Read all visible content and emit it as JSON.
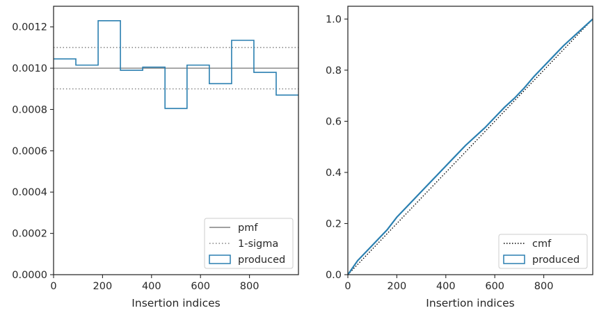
{
  "chart_data": [
    {
      "type": "line",
      "subtype": "step-histogram",
      "xlabel": "Insertion indices",
      "ylabel": "",
      "title": "",
      "xlim": [
        0,
        1000
      ],
      "ylim": [
        0,
        0.0013
      ],
      "xticks": [
        0,
        200,
        400,
        600,
        800
      ],
      "xtick_labels": [
        "0",
        "200",
        "400",
        "600",
        "800"
      ],
      "yticks": [
        0,
        0.0002,
        0.0004,
        0.0006,
        0.0008,
        0.001,
        0.0012
      ],
      "ytick_labels": [
        "0.0000",
        "0.0002",
        "0.0004",
        "0.0006",
        "0.0008",
        "0.0010",
        "0.0012"
      ],
      "legend_position": "lower right",
      "legend": [
        "pmf",
        "1-sigma",
        "produced"
      ],
      "reference_lines": [
        {
          "name": "pmf",
          "style": "solid",
          "color": "#808080",
          "y": 0.001
        },
        {
          "name": "1-sigma",
          "style": "dotted",
          "color": "#808080",
          "y": 0.0011
        },
        {
          "name": "1-sigma",
          "style": "dotted",
          "color": "#808080",
          "y": 0.0009
        }
      ],
      "series": [
        {
          "name": "produced",
          "color": "#2a7fb0",
          "bin_edges": [
            0,
            91,
            182,
            273,
            364,
            455,
            545,
            636,
            727,
            818,
            909,
            1000
          ],
          "values": [
            0.001045,
            0.001015,
            0.00123,
            0.00099,
            0.001005,
            0.000805,
            0.001015,
            0.000925,
            0.001135,
            0.00098,
            0.00087
          ]
        }
      ]
    },
    {
      "type": "line",
      "xlabel": "Insertion indices",
      "ylabel": "",
      "title": "",
      "xlim": [
        0,
        1000
      ],
      "ylim": [
        0,
        1.05
      ],
      "xticks": [
        0,
        200,
        400,
        600,
        800
      ],
      "xtick_labels": [
        "0",
        "200",
        "400",
        "600",
        "800"
      ],
      "yticks": [
        0,
        0.2,
        0.4,
        0.6,
        0.8,
        1.0
      ],
      "ytick_labels": [
        "0.0",
        "0.2",
        "0.4",
        "0.6",
        "0.8",
        "1.0"
      ],
      "legend_position": "lower right",
      "legend": [
        "cmf",
        "produced"
      ],
      "series": [
        {
          "name": "cmf",
          "style": "dotted",
          "color": "#000000",
          "x": [
            0,
            1000
          ],
          "y": [
            0,
            1.0
          ]
        },
        {
          "name": "produced",
          "style": "solid",
          "color": "#2a7fb0",
          "x": [
            0,
            40,
            80,
            120,
            160,
            200,
            240,
            280,
            320,
            360,
            400,
            440,
            480,
            520,
            560,
            600,
            640,
            680,
            720,
            760,
            800,
            840,
            880,
            920,
            960,
            1000
          ],
          "y": [
            0,
            0.055,
            0.095,
            0.135,
            0.175,
            0.225,
            0.265,
            0.305,
            0.345,
            0.385,
            0.425,
            0.465,
            0.505,
            0.54,
            0.575,
            0.615,
            0.655,
            0.69,
            0.73,
            0.775,
            0.815,
            0.855,
            0.895,
            0.93,
            0.965,
            1.0
          ]
        }
      ]
    }
  ]
}
